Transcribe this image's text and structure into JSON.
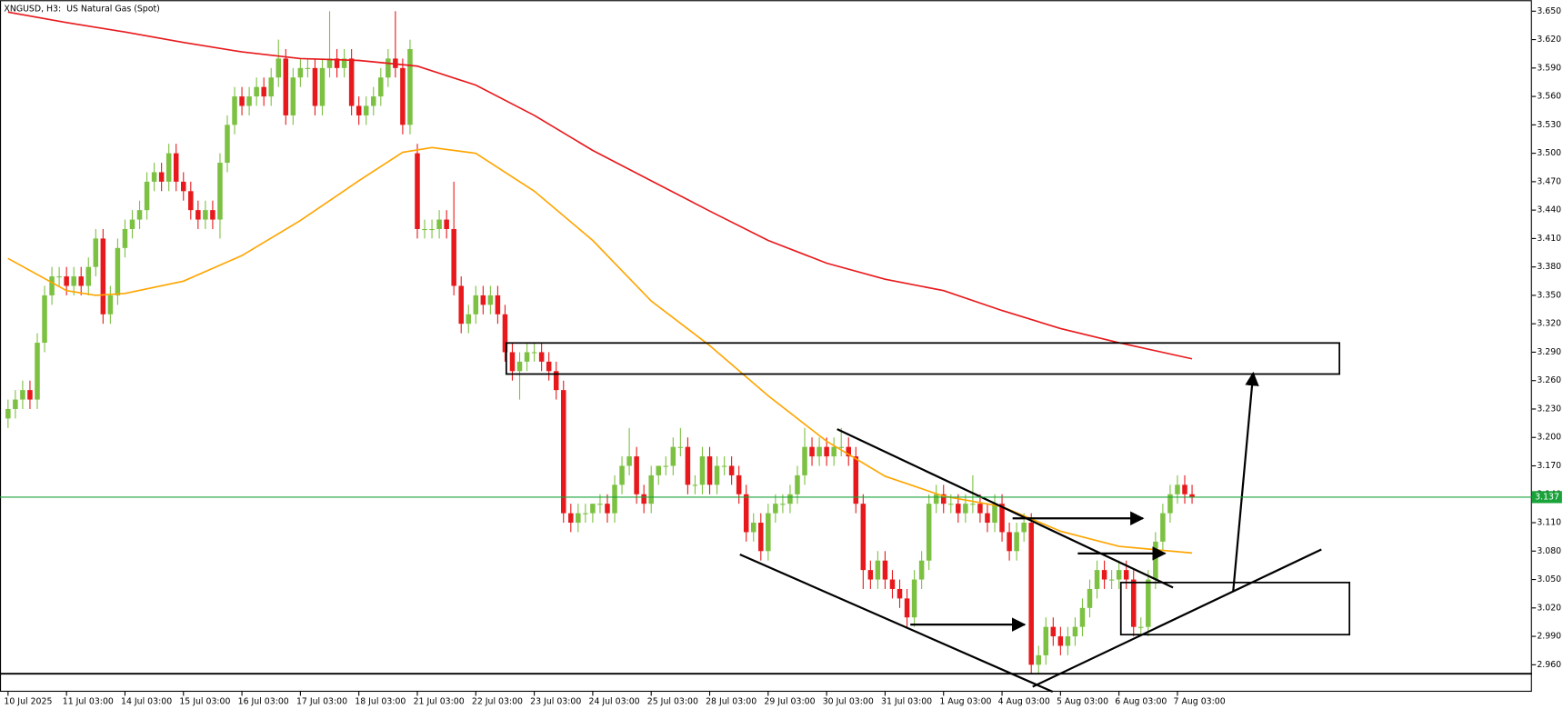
{
  "chart_data": {
    "type": "candlestick",
    "title": "XNGUSD, H3:  US Natural Gas (Spot)",
    "up_color": "#7cc142",
    "down_color": "#e8191c",
    "xlim": [
      -1.1,
      208.5
    ],
    "ylim": [
      2.9315,
      3.6616
    ],
    "yticks": [
      {
        "value": 2.96,
        "label": "2.960"
      },
      {
        "value": 2.99,
        "label": "2.990"
      },
      {
        "value": 3.02,
        "label": "3.020"
      },
      {
        "value": 3.05,
        "label": "3.050"
      },
      {
        "value": 3.08,
        "label": "3.080"
      },
      {
        "value": 3.11,
        "label": "3.110"
      },
      {
        "value": 3.14,
        "label": "3.140"
      },
      {
        "value": 3.17,
        "label": "3.170"
      },
      {
        "value": 3.2,
        "label": "3.200"
      },
      {
        "value": 3.23,
        "label": "3.230"
      },
      {
        "value": 3.26,
        "label": "3.260"
      },
      {
        "value": 3.29,
        "label": "3.290"
      },
      {
        "value": 3.32,
        "label": "3.320"
      },
      {
        "value": 3.35,
        "label": "3.350"
      },
      {
        "value": 3.38,
        "label": "3.380"
      },
      {
        "value": 3.41,
        "label": "3.410"
      },
      {
        "value": 3.44,
        "label": "3.440"
      },
      {
        "value": 3.47,
        "label": "3.470"
      },
      {
        "value": 3.5,
        "label": "3.500"
      },
      {
        "value": 3.53,
        "label": "3.530"
      },
      {
        "value": 3.56,
        "label": "3.560"
      },
      {
        "value": 3.59,
        "label": "3.590"
      },
      {
        "value": 3.62,
        "label": "3.620"
      },
      {
        "value": 3.65,
        "label": "3.650"
      }
    ],
    "xticks": [
      {
        "value": 0,
        "label": "10 Jul 2025"
      },
      {
        "value": 8,
        "label": "11 Jul 03:00"
      },
      {
        "value": 16,
        "label": "14 Jul 03:00"
      },
      {
        "value": 24,
        "label": "15 Jul 03:00"
      },
      {
        "value": 32,
        "label": "16 Jul 03:00"
      },
      {
        "value": 40,
        "label": "17 Jul 03:00"
      },
      {
        "value": 48,
        "label": "18 Jul 03:00"
      },
      {
        "value": 56,
        "label": "21 Jul 03:00"
      },
      {
        "value": 64,
        "label": "22 Jul 03:00"
      },
      {
        "value": 72,
        "label": "23 Jul 03:00"
      },
      {
        "value": 80,
        "label": "24 Jul 03:00"
      },
      {
        "value": 88,
        "label": "25 Jul 03:00"
      },
      {
        "value": 96,
        "label": "28 Jul 03:00"
      },
      {
        "value": 104,
        "label": "29 Jul 03:00"
      },
      {
        "value": 112,
        "label": "30 Jul 03:00"
      },
      {
        "value": 120,
        "label": "31 Jul 03:00"
      },
      {
        "value": 128,
        "label": "1 Aug 03:00"
      },
      {
        "value": 136,
        "label": "4 Aug 03:00"
      },
      {
        "value": 144,
        "label": "5 Aug 03:00"
      },
      {
        "value": 152,
        "label": "6 Aug 03:00"
      },
      {
        "value": 160,
        "label": "7 Aug 03:00"
      }
    ],
    "open": [
      3.22,
      3.23,
      3.24,
      3.25,
      3.24,
      3.3,
      3.35,
      3.37,
      3.37,
      3.36,
      3.37,
      3.36,
      3.38,
      3.41,
      3.33,
      3.35,
      3.4,
      3.42,
      3.43,
      3.44,
      3.47,
      3.48,
      3.47,
      3.5,
      3.47,
      3.46,
      3.44,
      3.43,
      3.44,
      3.43,
      3.49,
      3.53,
      3.56,
      3.55,
      3.56,
      3.57,
      3.56,
      3.58,
      3.6,
      3.54,
      3.58,
      3.59,
      3.59,
      3.55,
      3.59,
      3.6,
      3.59,
      3.6,
      3.55,
      3.54,
      3.55,
      3.56,
      3.58,
      3.6,
      3.59,
      3.53,
      3.5,
      3.42,
      3.42,
      3.42,
      3.43,
      3.42,
      3.36,
      3.32,
      3.33,
      3.35,
      3.34,
      3.35,
      3.33,
      3.29,
      3.27,
      3.28,
      3.29,
      3.29,
      3.28,
      3.27,
      3.25,
      3.12,
      3.11,
      3.12,
      3.12,
      3.13,
      3.13,
      3.12,
      3.15,
      3.17,
      3.18,
      3.14,
      3.13,
      3.16,
      3.17,
      3.17,
      3.19,
      3.19,
      3.15,
      3.15,
      3.18,
      3.15,
      3.17,
      3.17,
      3.16,
      3.14,
      3.1,
      3.11,
      3.08,
      3.12,
      3.13,
      3.13,
      3.14,
      3.16,
      3.19,
      3.18,
      3.19,
      3.18,
      3.19,
      3.19,
      3.18,
      3.13,
      3.06,
      3.05,
      3.07,
      3.05,
      3.04,
      3.03,
      3.01,
      3.05,
      3.07,
      3.13,
      3.14,
      3.13,
      3.13,
      3.12,
      3.13,
      3.13,
      3.12,
      3.11,
      3.13,
      3.1,
      3.08,
      3.1,
      3.11,
      2.96,
      2.97,
      3.0,
      2.99,
      2.98,
      2.99,
      3.0,
      3.02,
      3.04,
      3.06,
      3.05,
      3.05,
      3.06,
      3.05,
      3.0,
      3.0,
      3.05,
      3.09,
      3.12,
      3.14,
      3.15,
      3.14
    ],
    "high": [
      3.24,
      3.25,
      3.26,
      3.26,
      3.31,
      3.36,
      3.38,
      3.38,
      3.38,
      3.38,
      3.38,
      3.39,
      3.42,
      3.42,
      3.36,
      3.41,
      3.43,
      3.44,
      3.45,
      3.48,
      3.49,
      3.49,
      3.51,
      3.51,
      3.48,
      3.47,
      3.45,
      3.45,
      3.45,
      3.5,
      3.54,
      3.57,
      3.57,
      3.57,
      3.58,
      3.58,
      3.59,
      3.62,
      3.61,
      3.59,
      3.6,
      3.6,
      3.6,
      3.6,
      3.65,
      3.61,
      3.61,
      3.61,
      3.56,
      3.56,
      3.57,
      3.59,
      3.61,
      3.65,
      3.6,
      3.62,
      3.51,
      3.43,
      3.43,
      3.44,
      3.44,
      3.47,
      3.37,
      3.34,
      3.36,
      3.36,
      3.36,
      3.36,
      3.34,
      3.3,
      3.29,
      3.3,
      3.3,
      3.3,
      3.29,
      3.28,
      3.26,
      3.13,
      3.13,
      3.13,
      3.13,
      3.14,
      3.14,
      3.16,
      3.18,
      3.21,
      3.19,
      3.15,
      3.17,
      3.17,
      3.18,
      3.2,
      3.21,
      3.2,
      3.16,
      3.19,
      3.19,
      3.18,
      3.18,
      3.18,
      3.17,
      3.15,
      3.12,
      3.12,
      3.13,
      3.14,
      3.14,
      3.15,
      3.17,
      3.21,
      3.2,
      3.2,
      3.2,
      3.2,
      3.21,
      3.2,
      3.19,
      3.14,
      3.07,
      3.08,
      3.08,
      3.06,
      3.05,
      3.04,
      3.06,
      3.08,
      3.14,
      3.15,
      3.15,
      3.14,
      3.14,
      3.14,
      3.16,
      3.14,
      3.13,
      3.14,
      3.14,
      3.11,
      3.11,
      3.12,
      3.12,
      2.98,
      3.01,
      3.01,
      3.0,
      3.0,
      3.01,
      3.03,
      3.05,
      3.07,
      3.07,
      3.06,
      3.07,
      3.07,
      3.06,
      3.01,
      3.06,
      3.1,
      3.13,
      3.15,
      3.16,
      3.16,
      3.15
    ],
    "low": [
      3.21,
      3.22,
      3.23,
      3.23,
      3.23,
      3.29,
      3.34,
      3.36,
      3.35,
      3.35,
      3.35,
      3.35,
      3.37,
      3.32,
      3.32,
      3.34,
      3.39,
      3.41,
      3.42,
      3.43,
      3.46,
      3.46,
      3.46,
      3.46,
      3.45,
      3.43,
      3.42,
      3.42,
      3.42,
      3.41,
      3.48,
      3.52,
      3.54,
      3.54,
      3.55,
      3.55,
      3.55,
      3.57,
      3.53,
      3.53,
      3.57,
      3.58,
      3.54,
      3.54,
      3.58,
      3.58,
      3.58,
      3.54,
      3.53,
      3.53,
      3.54,
      3.55,
      3.57,
      3.58,
      3.52,
      3.52,
      3.41,
      3.41,
      3.41,
      3.41,
      3.41,
      3.35,
      3.31,
      3.31,
      3.32,
      3.33,
      3.33,
      3.32,
      3.28,
      3.26,
      3.24,
      3.27,
      3.28,
      3.27,
      3.26,
      3.24,
      3.11,
      3.1,
      3.1,
      3.11,
      3.11,
      3.12,
      3.11,
      3.11,
      3.14,
      3.16,
      3.13,
      3.12,
      3.12,
      3.15,
      3.16,
      3.16,
      3.18,
      3.14,
      3.14,
      3.14,
      3.14,
      3.14,
      3.16,
      3.15,
      3.13,
      3.09,
      3.09,
      3.07,
      3.07,
      3.11,
      3.12,
      3.12,
      3.13,
      3.15,
      3.17,
      3.17,
      3.17,
      3.17,
      3.18,
      3.17,
      3.12,
      3.04,
      3.04,
      3.04,
      3.04,
      3.03,
      3.02,
      3.0,
      3.0,
      3.04,
      3.06,
      3.12,
      3.12,
      3.12,
      3.11,
      3.11,
      3.12,
      3.11,
      3.1,
      3.1,
      3.09,
      3.07,
      3.07,
      3.09,
      2.95,
      2.95,
      2.96,
      2.98,
      2.97,
      2.97,
      2.98,
      2.99,
      3.01,
      3.03,
      3.04,
      3.04,
      3.04,
      3.04,
      2.99,
      2.99,
      2.99,
      3.04,
      3.08,
      3.11,
      3.13,
      3.13,
      3.13
    ],
    "close": [
      3.23,
      3.24,
      3.25,
      3.24,
      3.3,
      3.35,
      3.37,
      3.37,
      3.36,
      3.37,
      3.36,
      3.38,
      3.41,
      3.33,
      3.35,
      3.4,
      3.42,
      3.43,
      3.44,
      3.47,
      3.48,
      3.47,
      3.5,
      3.47,
      3.46,
      3.44,
      3.43,
      3.44,
      3.43,
      3.49,
      3.53,
      3.56,
      3.55,
      3.56,
      3.57,
      3.56,
      3.58,
      3.6,
      3.54,
      3.58,
      3.59,
      3.59,
      3.55,
      3.59,
      3.6,
      3.59,
      3.6,
      3.55,
      3.54,
      3.55,
      3.56,
      3.58,
      3.6,
      3.59,
      3.53,
      3.61,
      3.42,
      3.42,
      3.42,
      3.43,
      3.42,
      3.36,
      3.32,
      3.33,
      3.35,
      3.34,
      3.35,
      3.33,
      3.29,
      3.27,
      3.28,
      3.29,
      3.29,
      3.28,
      3.27,
      3.25,
      3.12,
      3.11,
      3.12,
      3.12,
      3.13,
      3.13,
      3.12,
      3.15,
      3.17,
      3.18,
      3.14,
      3.13,
      3.16,
      3.17,
      3.17,
      3.19,
      3.19,
      3.15,
      3.15,
      3.18,
      3.15,
      3.17,
      3.17,
      3.16,
      3.14,
      3.1,
      3.11,
      3.08,
      3.12,
      3.13,
      3.13,
      3.14,
      3.16,
      3.19,
      3.18,
      3.19,
      3.18,
      3.19,
      3.19,
      3.18,
      3.13,
      3.06,
      3.05,
      3.07,
      3.05,
      3.04,
      3.03,
      3.01,
      3.05,
      3.07,
      3.13,
      3.14,
      3.13,
      3.13,
      3.12,
      3.13,
      3.13,
      3.12,
      3.11,
      3.13,
      3.1,
      3.08,
      3.1,
      3.11,
      2.96,
      2.97,
      3.0,
      2.99,
      2.98,
      2.99,
      3.0,
      3.02,
      3.04,
      3.06,
      3.05,
      3.05,
      3.06,
      3.05,
      3.0,
      3.0,
      3.05,
      3.09,
      3.12,
      3.14,
      3.15,
      3.14,
      3.137
    ],
    "lines": [
      {
        "color": "#ffa500",
        "x": [
          0,
          8,
          12,
          16,
          24,
          32,
          40,
          48,
          54,
          58,
          64,
          72,
          80,
          88,
          96,
          104,
          112,
          120,
          128,
          136,
          144,
          152,
          162
        ],
        "values": [
          3.389,
          3.355,
          3.35,
          3.352,
          3.365,
          3.392,
          3.429,
          3.471,
          3.501,
          3.506,
          3.5,
          3.46,
          3.408,
          3.344,
          3.297,
          3.244,
          3.196,
          3.159,
          3.138,
          3.127,
          3.101,
          3.085,
          3.078
        ]
      },
      {
        "color": "#e8191c",
        "x": [
          0,
          8,
          16,
          24,
          32,
          40,
          48,
          56,
          64,
          72,
          80,
          88,
          96,
          104,
          112,
          120,
          128,
          136,
          144,
          152,
          162
        ],
        "values": [
          3.649,
          3.638,
          3.628,
          3.617,
          3.607,
          3.6,
          3.598,
          3.592,
          3.572,
          3.54,
          3.503,
          3.471,
          3.439,
          3.408,
          3.384,
          3.367,
          3.355,
          3.334,
          3.315,
          3.3,
          3.283
        ]
      }
    ],
    "price_line": {
      "value": 3.137,
      "color": "#1aa33a"
    }
  }
}
